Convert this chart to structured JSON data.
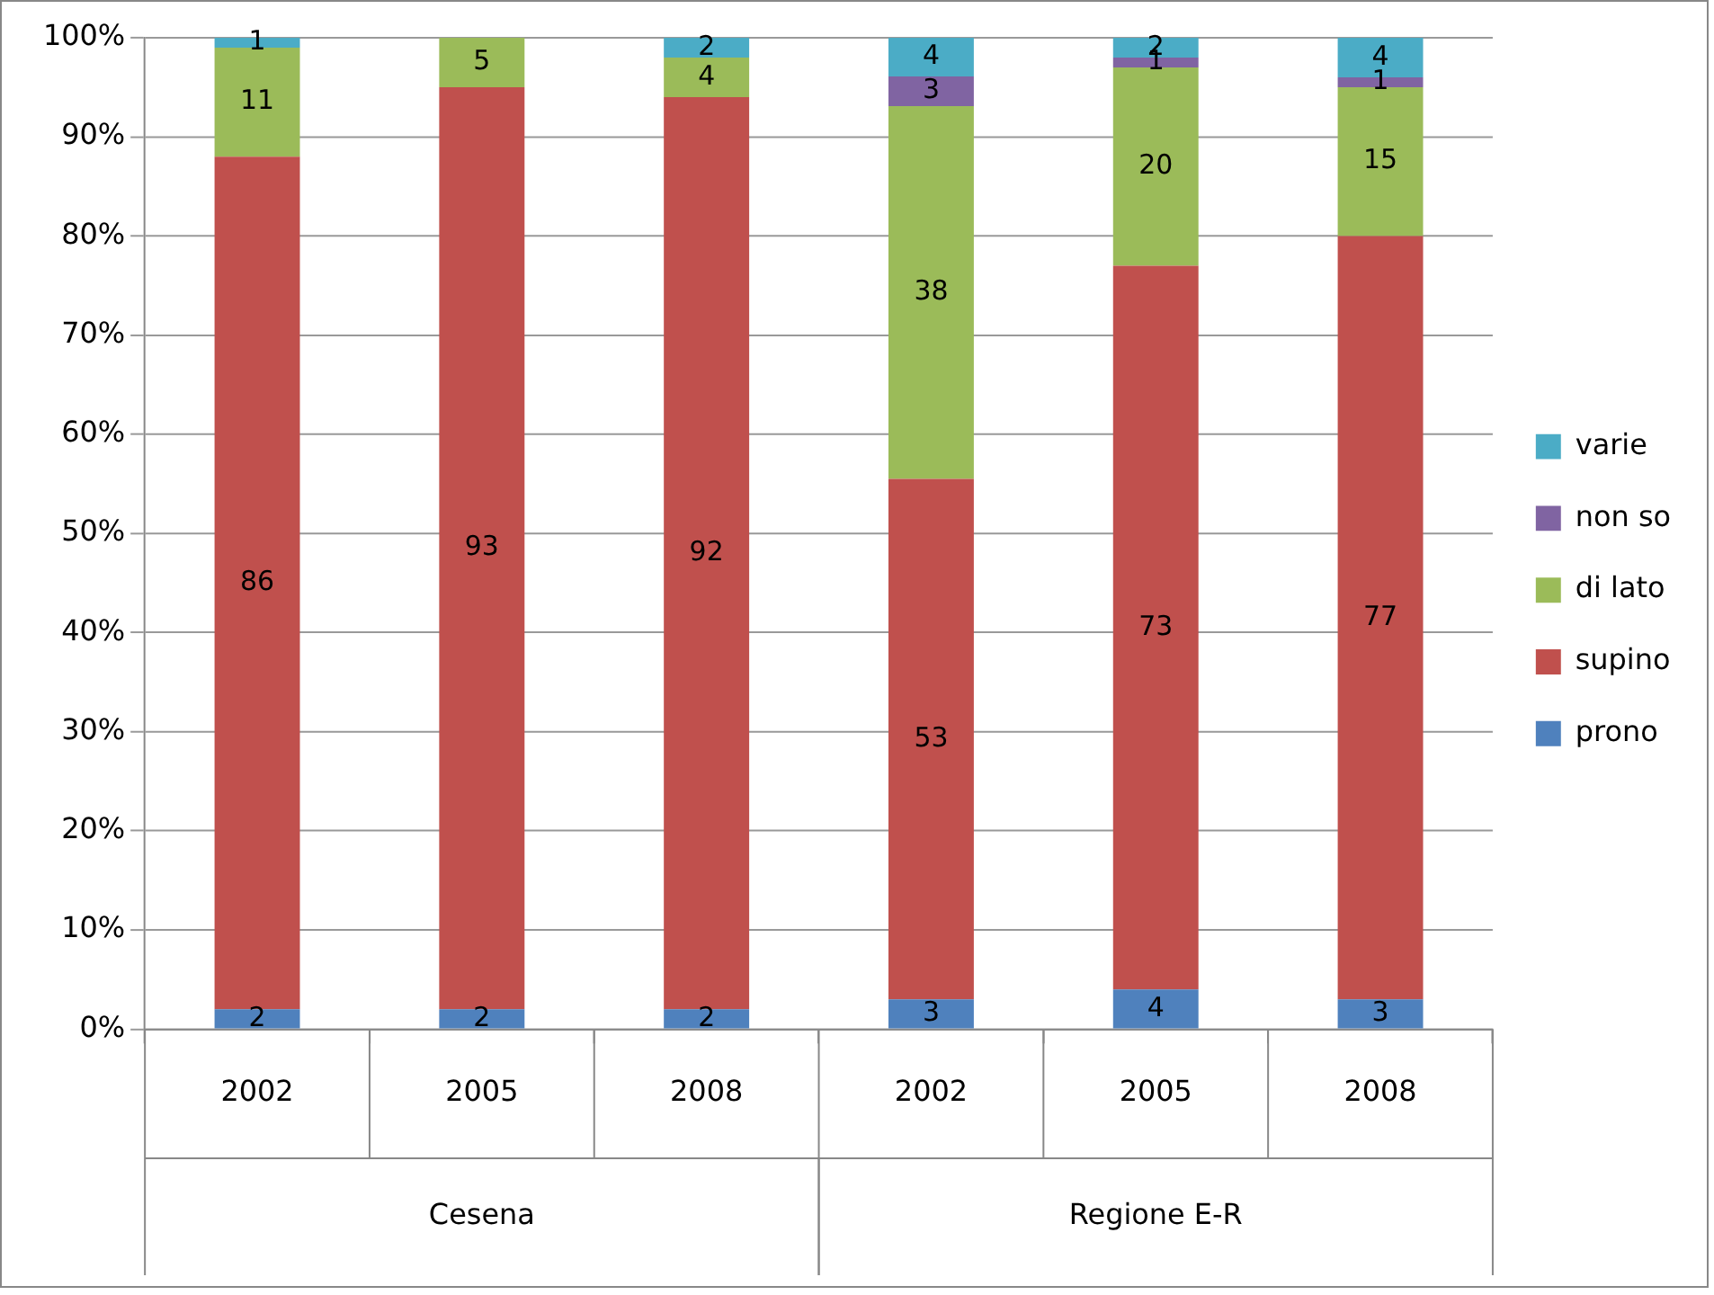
{
  "chart_data": {
    "type": "bar",
    "stacked": true,
    "categories": [
      "2002",
      "2005",
      "2008",
      "2002",
      "2005",
      "2008"
    ],
    "series": [
      {
        "name": "prono",
        "color": "#4f81bd",
        "values": [
          2,
          2,
          2,
          3,
          4,
          3
        ],
        "value_labels": [
          "2",
          "2",
          "2",
          "3",
          "4",
          "3"
        ]
      },
      {
        "name": "supino",
        "color": "#c0504d",
        "values": [
          86,
          93,
          92,
          52.5,
          73,
          77
        ],
        "value_labels": [
          "86",
          "93",
          "92",
          "53",
          "73",
          "77"
        ]
      },
      {
        "name": "di lato",
        "color": "#9bbb59",
        "values": [
          11,
          5,
          4,
          37.6,
          20,
          15
        ],
        "value_labels": [
          "11",
          "5",
          "4",
          "38",
          "20",
          "15"
        ]
      },
      {
        "name": "non so",
        "color": "#8064a2",
        "values": [
          0,
          0,
          0,
          3,
          1,
          1
        ],
        "value_labels": [
          null,
          null,
          null,
          "3",
          "1",
          "1"
        ]
      },
      {
        "name": "varie",
        "color": "#4bacc6",
        "values": [
          1,
          0,
          2,
          4,
          2,
          4
        ],
        "value_labels": [
          "1",
          null,
          "2",
          "4",
          "2",
          "4"
        ]
      }
    ],
    "ylim": [
      0,
      100
    ],
    "yticks": [
      {
        "value": 0,
        "label": "0%"
      },
      {
        "value": 10,
        "label": "10%"
      },
      {
        "value": 20,
        "label": "20%"
      },
      {
        "value": 30,
        "label": "30%"
      },
      {
        "value": 40,
        "label": "40%"
      },
      {
        "value": 50,
        "label": "50%"
      },
      {
        "value": 60,
        "label": "60%"
      },
      {
        "value": 70,
        "label": "70%"
      },
      {
        "value": 80,
        "label": "80%"
      },
      {
        "value": 90,
        "label": "90%"
      },
      {
        "value": 100,
        "label": "100%"
      }
    ],
    "grid": "y",
    "legend": "right",
    "annotations": [
      "Cesena",
      "Regione E-R"
    ]
  }
}
